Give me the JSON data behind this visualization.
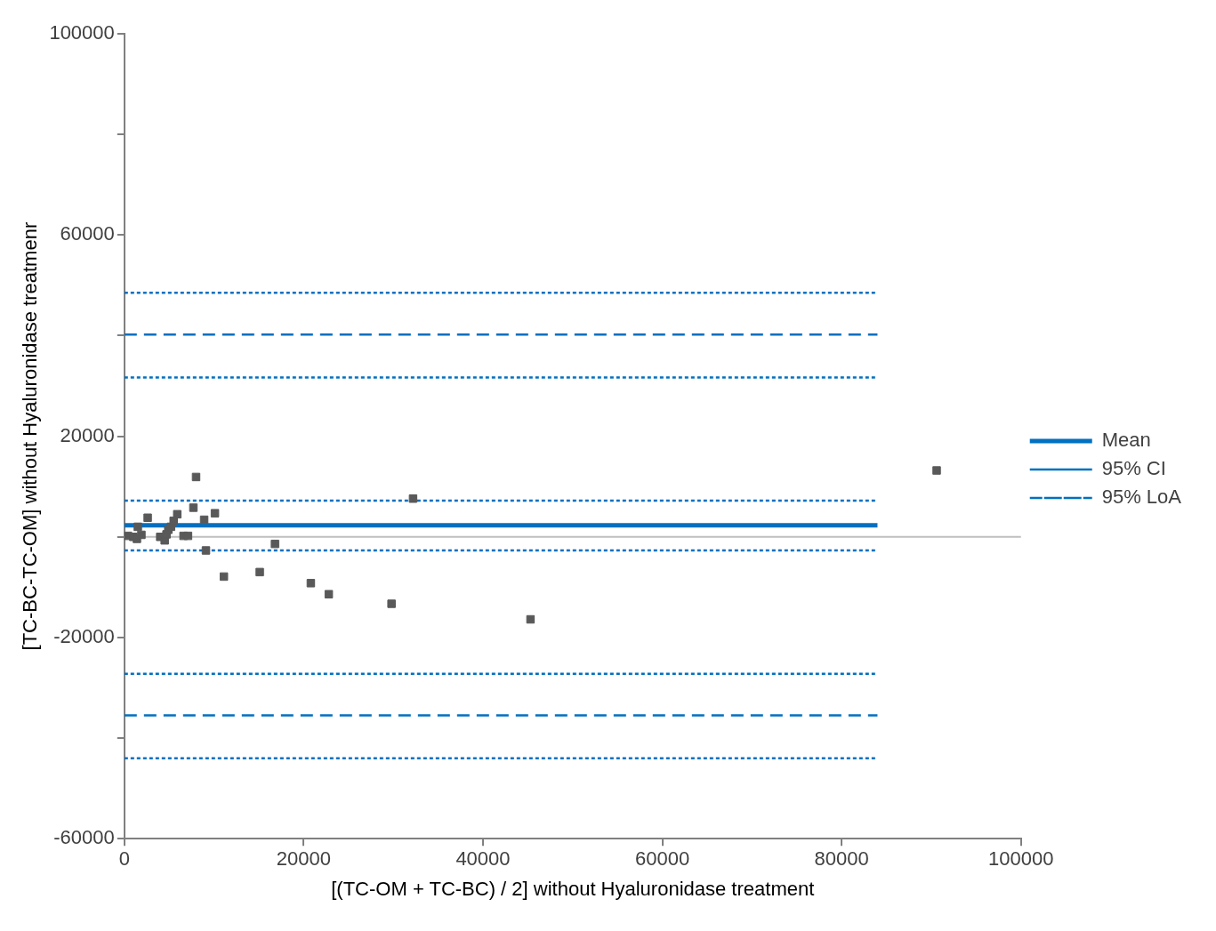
{
  "chart_data": {
    "type": "scatter",
    "xlabel": "[(TC-OM + TC-BC) / 2] without Hyaluronidase treatment",
    "ylabel": "[TC-BC-TC-OM] without Hyaluronidase treatmenr",
    "xlim": [
      0,
      100000
    ],
    "xticks": [
      0,
      20000,
      40000,
      60000,
      80000,
      100000
    ],
    "ylim": [
      -60000,
      100000
    ],
    "yticks": [
      -60000,
      {
        "value": -40000,
        "label": null
      },
      -20000,
      {
        "value": 0,
        "label": null
      },
      20000,
      {
        "value": 40000,
        "label": null
      },
      60000,
      {
        "value": 80000,
        "label": null
      },
      100000
    ],
    "grid": false,
    "legend": "right",
    "ref_lines": [
      {
        "axis": "y",
        "value": 0,
        "color": "#bfbfbf"
      }
    ],
    "series": [
      {
        "color": "#595959",
        "marker": "square",
        "x": [
          400,
          1000,
          1400,
          1500,
          1900,
          2600,
          4000,
          4500,
          4700,
          4900,
          5200,
          5500,
          5900,
          6600,
          7100,
          7700,
          8000,
          8900,
          9100,
          10100,
          11100,
          15100,
          16800,
          20800,
          22800,
          29800,
          32200,
          45300,
          90600
        ],
        "values": [
          200,
          0,
          -400,
          2000,
          400,
          3800,
          0,
          -700,
          500,
          1400,
          2000,
          3200,
          4500,
          200,
          200,
          5800,
          11900,
          3400,
          -2700,
          4700,
          -7900,
          -7000,
          -1400,
          -9200,
          -11400,
          -13300,
          7600,
          -16400,
          13200
        ]
      },
      {
        "type": "line",
        "name": "Mean",
        "color": "#0070c0",
        "line_style": "solid",
        "x": [
          0,
          84000
        ],
        "values": [
          2300,
          2300
        ]
      },
      {
        "type": "line",
        "name": "95% CI",
        "color": "#0070c0",
        "line_style": "dotted",
        "x": [
          0,
          84000
        ],
        "values": [
          7200,
          7200
        ]
      },
      {
        "type": "line",
        "name": "95% LoA",
        "color": "#0070c0",
        "line_style": "dashed",
        "x": [
          0,
          84000
        ],
        "values": [
          40200,
          40200
        ]
      },
      {
        "type": "line",
        "color": "#0070c0",
        "line_style": "dotted",
        "x": [
          0,
          84000
        ],
        "values": [
          -2700,
          -2700
        ]
      },
      {
        "type": "line",
        "color": "#0070c0",
        "line_style": "dotted",
        "x": [
          0,
          84000
        ],
        "values": [
          48500,
          48500
        ]
      },
      {
        "type": "line",
        "color": "#0070c0",
        "line_style": "dotted",
        "x": [
          0,
          84000
        ],
        "values": [
          31700,
          31700
        ]
      },
      {
        "type": "line",
        "color": "#0070c0",
        "line_style": "dashed",
        "x": [
          0,
          84000
        ],
        "values": [
          -35500,
          -35500
        ]
      },
      {
        "type": "line",
        "color": "#0070c0",
        "line_style": "dotted",
        "x": [
          0,
          84000
        ],
        "values": [
          -27200,
          -27200
        ]
      },
      {
        "type": "line",
        "color": "#0070c0",
        "line_style": "dotted",
        "x": [
          0,
          84000
        ],
        "values": [
          -44000,
          -44000
        ]
      }
    ]
  }
}
